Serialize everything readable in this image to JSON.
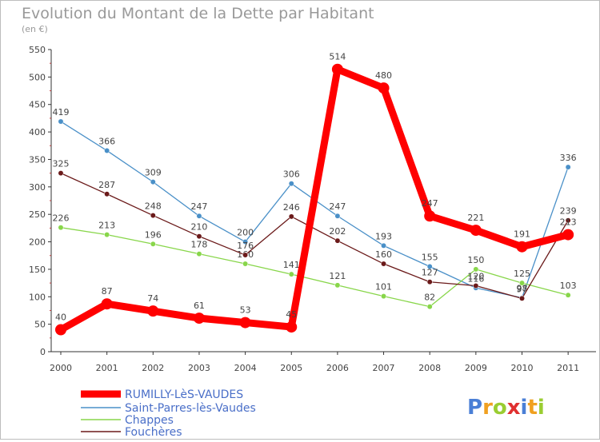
{
  "chart_data": {
    "type": "line",
    "title": "Evolution du Montant de la Dette par Habitant",
    "subtitle": "(en €)",
    "x": [
      "2000",
      "2001",
      "2002",
      "2003",
      "2004",
      "2005",
      "2006",
      "2007",
      "2008",
      "2009",
      "2010",
      "2011"
    ],
    "ylim": [
      0,
      550
    ],
    "yticks": [
      0,
      50,
      100,
      150,
      200,
      250,
      300,
      350,
      400,
      450,
      500,
      550
    ],
    "grid": false,
    "legend_position": "bottom-left",
    "series": [
      {
        "name": "RUMILLY-LèS-VAUDES",
        "color": "#ff0000",
        "values": [
          40,
          87,
          74,
          61,
          53,
          45,
          514,
          480,
          247,
          221,
          191,
          213
        ]
      },
      {
        "name": "Saint-Parres-lès-Vaudes",
        "color": "#4a90c8",
        "values": [
          419,
          366,
          309,
          247,
          200,
          306,
          247,
          193,
          155,
          116,
          98,
          336
        ]
      },
      {
        "name": "Chappes",
        "color": "#88d64a",
        "values": [
          226,
          213,
          196,
          178,
          160,
          141,
          121,
          101,
          82,
          150,
          125,
          103
        ]
      },
      {
        "name": "Fouchères",
        "color": "#6b1a1a",
        "values": [
          325,
          287,
          248,
          210,
          176,
          246,
          202,
          160,
          127,
          120,
          97,
          239
        ]
      }
    ]
  },
  "logo": {
    "text": "Proxiti",
    "letters": [
      "P",
      "r",
      "o",
      "x",
      "i",
      "t",
      "i"
    ],
    "colors": [
      "#4a7fd6",
      "#f0a020",
      "#9acd32",
      "#e03030",
      "#4a7fd6",
      "#f0a020",
      "#9acd32"
    ]
  }
}
